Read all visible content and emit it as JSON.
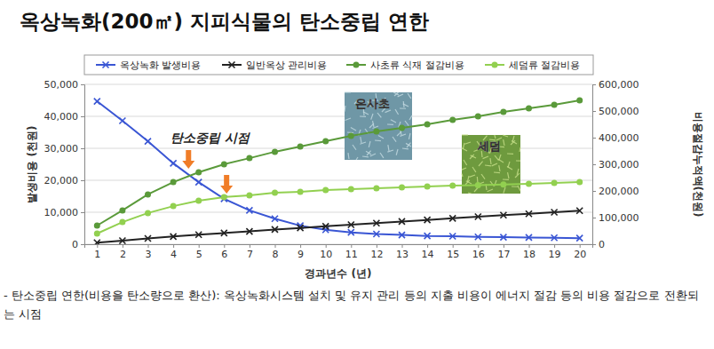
{
  "chart_data": {
    "type": "line",
    "title": "옥상녹화(200㎡) 지피식물의 탄소중립 연한",
    "x_label": "경과년수 (년)",
    "y_label": "발생비용 (천원)",
    "y2_label": "비용절감누적액(천원)",
    "x": [
      1,
      2,
      3,
      4,
      5,
      6,
      7,
      8,
      9,
      10,
      11,
      12,
      13,
      14,
      15,
      16,
      17,
      18,
      19,
      20
    ],
    "xlim": [
      0.5,
      20.5
    ],
    "xticks": [
      1,
      2,
      3,
      4,
      5,
      6,
      7,
      8,
      9,
      10,
      11,
      12,
      13,
      14,
      15,
      16,
      17,
      18,
      19,
      20
    ],
    "ylim": [
      0,
      50000
    ],
    "yticks": [
      0,
      {
        "value": 10000,
        "label": "10,000"
      },
      {
        "value": 20000,
        "label": "20,000"
      },
      {
        "value": 30000,
        "label": "30,000"
      },
      {
        "value": 40000,
        "label": "40,000"
      },
      {
        "value": 50000,
        "label": "50,000"
      }
    ],
    "y2lim": [
      0,
      600000
    ],
    "y2ticks": [
      0,
      {
        "value": 100000,
        "label": "100,000"
      },
      {
        "value": 200000,
        "label": "200,000"
      },
      {
        "value": 300000,
        "label": "300,000"
      },
      {
        "value": 400000,
        "label": "400,000"
      },
      {
        "value": 500000,
        "label": "500,000"
      },
      {
        "value": 600000,
        "label": "600,000"
      }
    ],
    "grid": true,
    "legend": "top",
    "series": [
      {
        "name": "옥상녹화 발생비용",
        "color": "#3a56d4",
        "marker": "x",
        "values": [
          44700,
          38600,
          32200,
          25300,
          19400,
          14200,
          10600,
          8000,
          5800,
          4500,
          3700,
          3200,
          2900,
          2600,
          2500,
          2300,
          2200,
          2100,
          2000,
          1900
        ]
      },
      {
        "name": "일반옥상 관리비용",
        "color": "#222222",
        "marker": "x",
        "values": [
          500,
          1100,
          1800,
          2400,
          3000,
          3500,
          4000,
          4600,
          5100,
          5600,
          6100,
          6600,
          7100,
          7600,
          8100,
          8600,
          9100,
          9500,
          10000,
          10500
        ]
      },
      {
        "name": "사초류 식재 절감비용",
        "color": "#5a9a3a",
        "marker": "circle",
        "axis": "y2",
        "values": [
          70000,
          127000,
          187000,
          233000,
          270000,
          300000,
          323000,
          347000,
          367000,
          387000,
          407000,
          423000,
          437000,
          450000,
          467000,
          480000,
          497000,
          510000,
          523000,
          540000
        ]
      },
      {
        "name": "세덤류 절감비용",
        "color": "#92d050",
        "marker": "circle",
        "axis": "y2",
        "values": [
          40000,
          83000,
          117000,
          143000,
          163000,
          177000,
          183000,
          193000,
          197000,
          203000,
          207000,
          210000,
          213000,
          217000,
          220000,
          222000,
          224000,
          227000,
          230000,
          233000
        ]
      }
    ],
    "annotations": [
      {
        "text": "탄소중립 시점",
        "points": [
          {
            "x": 4.6,
            "y": 23600
          },
          {
            "x": 6.1,
            "y": 15800
          }
        ]
      },
      {
        "text": "은사초"
      },
      {
        "text": "세덤"
      }
    ],
    "footnote": "- 탄소중립 연한(비용을 탄소량으로 환산): 옥상녹화시스템 설치 및 유지 관리 등의 지출 비용이 에너지 절감 등의 비용 절감으로 전환되는 시점"
  }
}
